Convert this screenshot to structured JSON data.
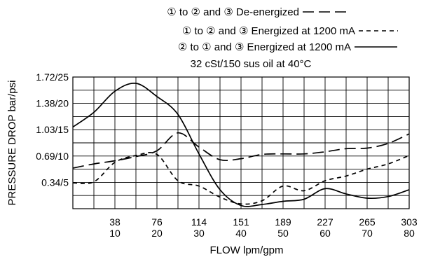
{
  "chart_data": {
    "type": "line",
    "legend_position": "top-center",
    "legend": [
      {
        "text": "① to ② and ③ De-energized",
        "dash": "long-dash"
      },
      {
        "text": "① to ② and ③ Energized at 1200 mA",
        "dash": "short-dash"
      },
      {
        "text": "② to ① and ③ Energized at 1200 mA",
        "dash": "solid"
      }
    ],
    "subtitle": "32 cSt/150 sus oil at 40°C",
    "xlabel": "FLOW lpm/gpm",
    "ylabel": "PRESSURE DROP  bar/psi",
    "grid": true,
    "xlim": [
      0,
      80
    ],
    "ylim": [
      0,
      25
    ],
    "x_ticks": [
      {
        "gpm": 10,
        "lpm": "38",
        "gpm_label": "10"
      },
      {
        "gpm": 20,
        "lpm": "76",
        "gpm_label": "20"
      },
      {
        "gpm": 30,
        "lpm": "114",
        "gpm_label": "30"
      },
      {
        "gpm": 40,
        "lpm": "151",
        "gpm_label": "40"
      },
      {
        "gpm": 50,
        "lpm": "189",
        "gpm_label": "50"
      },
      {
        "gpm": 60,
        "lpm": "227",
        "gpm_label": "60"
      },
      {
        "gpm": 70,
        "lpm": "265",
        "gpm_label": "70"
      },
      {
        "gpm": 80,
        "lpm": "303",
        "gpm_label": "80"
      }
    ],
    "y_ticks": [
      {
        "psi": 5,
        "label": "0.34/5"
      },
      {
        "psi": 10,
        "label": "0.69/10"
      },
      {
        "psi": 15,
        "label": "1.03/15"
      },
      {
        "psi": 20,
        "label": "1.38/20"
      },
      {
        "psi": 25,
        "label": "1.72/25"
      }
    ],
    "series": [
      {
        "dash": "long-dash",
        "x": [
          0,
          5,
          10,
          15,
          20,
          25,
          30,
          35,
          40,
          45,
          50,
          55,
          60,
          65,
          70,
          75,
          80
        ],
        "y": [
          7.7,
          8.5,
          9.1,
          9.9,
          11.0,
          14.4,
          11.7,
          9.3,
          9.5,
          10.3,
          10.4,
          10.4,
          10.8,
          11.4,
          11.5,
          12.4,
          14.2
        ]
      },
      {
        "dash": "short-dash",
        "x": [
          0,
          5,
          10,
          15,
          20,
          25,
          30,
          35,
          40,
          45,
          50,
          55,
          60,
          65,
          70,
          75,
          80
        ],
        "y": [
          4.9,
          5.1,
          8.8,
          10.1,
          10.3,
          5.3,
          4.3,
          2.2,
          0.9,
          1.5,
          4.3,
          3.4,
          5.3,
          6.2,
          7.5,
          8.5,
          10.1
        ]
      },
      {
        "dash": "solid",
        "x": [
          0,
          5,
          10,
          15,
          20,
          25,
          30,
          35,
          40,
          45,
          50,
          55,
          60,
          65,
          70,
          75,
          80
        ],
        "y": [
          15.5,
          18.3,
          22.3,
          23.8,
          21.3,
          17.9,
          10.4,
          3.6,
          0.6,
          0.8,
          1.4,
          1.8,
          3.8,
          2.8,
          2.0,
          2.3,
          3.6
        ]
      }
    ]
  }
}
